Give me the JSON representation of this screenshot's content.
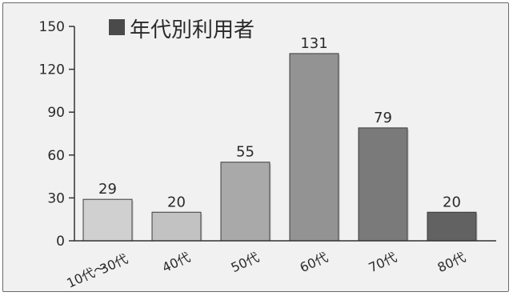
{
  "chart_data": {
    "type": "bar",
    "legend_title": "年代別利用者",
    "legend_color": "#4a4a4a",
    "legend_position": "top-left",
    "categories": [
      [
        "10代〜",
        "30代"
      ],
      [
        "40代"
      ],
      [
        "50代"
      ],
      [
        "60代"
      ],
      [
        "70代"
      ],
      [
        "80代"
      ]
    ],
    "values": [
      29,
      20,
      55,
      131,
      79,
      20
    ],
    "bar_colors": [
      "#d0d0d0",
      "#c2c2c2",
      "#a9a9a9",
      "#939393",
      "#7a7a7a",
      "#626262"
    ],
    "yticks": [
      0,
      30,
      60,
      90,
      120,
      150
    ],
    "ylim": [
      0,
      150
    ],
    "grid": false
  }
}
